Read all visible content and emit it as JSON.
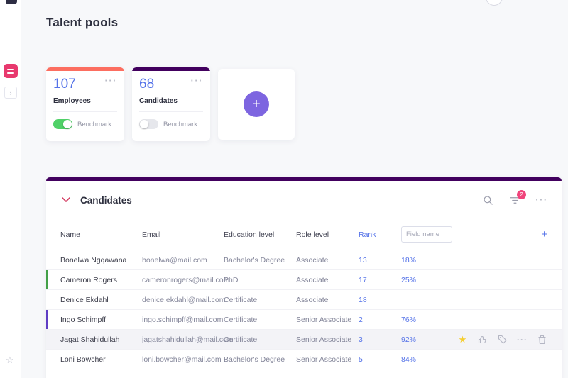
{
  "page": {
    "title": "Talent pools"
  },
  "cards": [
    {
      "value": "107",
      "label": "Employees",
      "benchmark_label": "Benchmark",
      "toggle_on": true,
      "accent_color": "#fc6e60"
    },
    {
      "value": "68",
      "label": "Candidates",
      "benchmark_label": "Benchmark",
      "toggle_on": false,
      "accent_color": "#42005e"
    }
  ],
  "add_card": {
    "plus_label": "+"
  },
  "table": {
    "title": "Candidates",
    "accent_color": "#42005e",
    "filter_badge_count": "2",
    "columns": [
      "Name",
      "Email",
      "Education level",
      "Role level",
      "Rank"
    ],
    "new_field_placeholder": "Field name",
    "add_column_label": "+",
    "rows": [
      {
        "name": "Bonelwa Ngqawana",
        "email": "bonelwa@mail.com",
        "education": "Bachelor's Degree",
        "role": "Associate",
        "rank": "13",
        "percent": "18%",
        "accent": "",
        "highlighted": false
      },
      {
        "name": "Cameron Rogers",
        "email": "cameronrogers@mail.com",
        "education": "PhD",
        "role": "Associate",
        "rank": "17",
        "percent": "25%",
        "accent": "#43a047",
        "highlighted": false
      },
      {
        "name": "Denice Ekdahl",
        "email": "denice.ekdahl@mail.com",
        "education": "Certificate",
        "role": "Associate",
        "rank": "18",
        "percent": "",
        "accent": "",
        "highlighted": false
      },
      {
        "name": "Ingo Schimpff",
        "email": "ingo.schimpff@mail.com",
        "education": "Certificate",
        "role": "Senior Associate",
        "rank": "2",
        "percent": "76%",
        "accent": "#5f3dc4",
        "highlighted": false
      },
      {
        "name": "Jagat Shahidullah",
        "email": "jagatshahidullah@mail.com",
        "education": "Certificate",
        "role": "Senior Associate",
        "rank": "3",
        "percent": "92%",
        "accent": "",
        "highlighted": true
      },
      {
        "name": "Loni Bowcher",
        "email": "loni.bowcher@mail.com",
        "education": "Bachelor's Degree",
        "role": "Senior Associate",
        "rank": "5",
        "percent": "84%",
        "accent": "",
        "highlighted": false
      }
    ]
  },
  "icons": {
    "more": "···",
    "expand": "›",
    "favorite": "☆",
    "row_star": "★"
  },
  "colors": {
    "primary_blue": "#5472e8",
    "pink": "#e8396e",
    "toggle_green": "#50d168",
    "plus_purple": "#7d65e0"
  }
}
